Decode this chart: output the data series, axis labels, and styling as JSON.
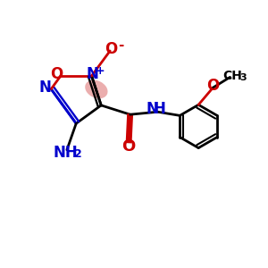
{
  "bg_color": "#ffffff",
  "ring_color": "#000000",
  "n_color": "#0000cc",
  "o_color": "#cc0000",
  "highlight_color": "#e8a0a0",
  "bond_lw": 2.0,
  "figsize": [
    3.0,
    3.0
  ],
  "dpi": 100,
  "xlim": [
    0,
    10
  ],
  "ylim": [
    0,
    10
  ]
}
